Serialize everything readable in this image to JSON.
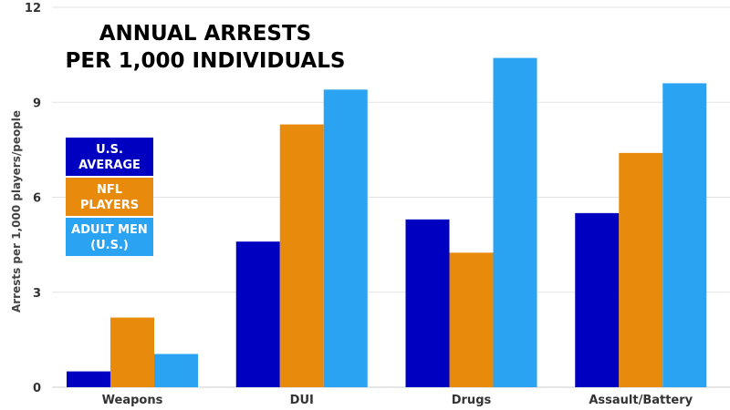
{
  "chart_data": {
    "type": "bar",
    "title_lines": [
      "ANNUAL ARRESTS",
      "PER 1,000 INDIVIDUALS"
    ],
    "xlabel": "",
    "ylabel": "Arrests per 1,000 players/people",
    "ylim": [
      0,
      12
    ],
    "yticks": [
      0,
      3,
      6,
      9,
      12
    ],
    "grid": true,
    "legend_position": "left",
    "categories": [
      "Weapons",
      "DUI",
      "Drugs",
      "Assault/Battery"
    ],
    "series": [
      {
        "name": "U.S. AVERAGE",
        "legend_lines": [
          "U.S.",
          "AVERAGE"
        ],
        "color": "#0000c0",
        "values": [
          0.5,
          4.6,
          5.3,
          5.5
        ]
      },
      {
        "name": "NFL PLAYERS",
        "legend_lines": [
          "NFL",
          "PLAYERS"
        ],
        "color": "#e88a0c",
        "values": [
          2.2,
          8.3,
          4.25,
          7.4
        ]
      },
      {
        "name": "ADULT MEN (U.S.)",
        "legend_lines": [
          "ADULT MEN",
          "(U.S.)"
        ],
        "color": "#2aa3f2",
        "values": [
          1.05,
          9.4,
          10.4,
          9.6
        ]
      }
    ]
  }
}
